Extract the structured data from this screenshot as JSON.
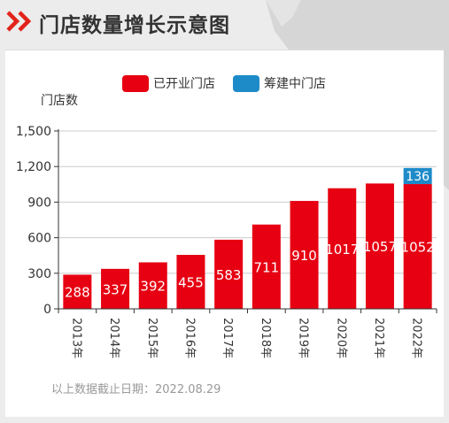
{
  "header": {
    "title": "门店数量增长示意图",
    "icon": "double-chevron-right-icon",
    "accent_color": "#e2231a"
  },
  "legend": {
    "opened": "已开业门店",
    "building": "筹建中门店"
  },
  "footnote": "以上数据截止日期：2022.08.29",
  "chart_data": {
    "type": "bar",
    "stacked": true,
    "categories": [
      "2013年",
      "2014年",
      "2015年",
      "2016年",
      "2017年",
      "2018年",
      "2019年",
      "2020年",
      "2021年",
      "2022年"
    ],
    "series": [
      {
        "name": "已开业门店",
        "color": "#e60012",
        "values": [
          288,
          337,
          392,
          455,
          583,
          711,
          910,
          1017,
          1057,
          1052
        ]
      },
      {
        "name": "筹建中门店",
        "color": "#1e8bc9",
        "values": [
          0,
          0,
          0,
          0,
          0,
          0,
          0,
          0,
          0,
          136
        ]
      }
    ],
    "ylabel": "门店数",
    "ylim": [
      0,
      1500
    ],
    "yticks": [
      0,
      300,
      600,
      900,
      1200,
      1500
    ],
    "ytick_labels": [
      "0",
      "300",
      "600",
      "900",
      "1,200",
      "1,500"
    ],
    "grid": true,
    "legend_position": "top"
  }
}
